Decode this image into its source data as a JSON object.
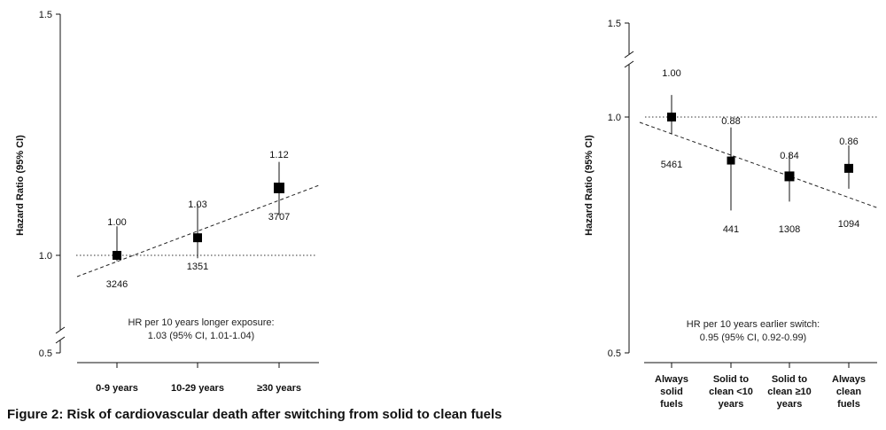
{
  "caption": "Figure 2: Risk of cardiovascular death after switching from solid to clean fuels",
  "chart_data": [
    {
      "type": "scatter",
      "title": "",
      "ylabel": "Hazard Ratio (95% CI)",
      "y_scale": "log",
      "ylim": [
        0.5,
        1.5
      ],
      "y_ticks": [
        "0.5",
        "1.0",
        "1.5"
      ],
      "axis_break": true,
      "reference_line": 1.0,
      "categories": [
        "0-9 years",
        "10-29 years",
        "≥30 years"
      ],
      "estimates": [
        1.0,
        1.03,
        1.12
      ],
      "estimate_labels": [
        "1.00",
        "1.03",
        "1.12"
      ],
      "ci_low": [
        0.96,
        0.98,
        1.07
      ],
      "ci_high": [
        1.05,
        1.09,
        1.17
      ],
      "counts": [
        "3246",
        "1351",
        "3707"
      ],
      "trend_line": true,
      "annotation": [
        "HR per 10 years longer exposure:",
        "1.03 (95% CI, 1.01-1.04)"
      ]
    },
    {
      "type": "scatter",
      "title": "",
      "ylabel": "Hazard Ratio (95% CI)",
      "y_scale": "log",
      "ylim": [
        0.5,
        1.5
      ],
      "y_ticks": [
        "0.5",
        "1.0",
        "1.5"
      ],
      "axis_break": true,
      "reference_line": 1.0,
      "categories": [
        [
          "Always",
          "solid",
          "fuels"
        ],
        [
          "Solid to",
          "clean <10",
          "years"
        ],
        [
          "Solid to",
          "clean ≥10",
          "years"
        ],
        [
          "Always",
          "clean",
          "fuels"
        ]
      ],
      "estimates": [
        1.0,
        0.88,
        0.84,
        0.86
      ],
      "estimate_labels": [
        "1.00",
        "0.88",
        "0.84",
        "0.86"
      ],
      "ci_low": [
        0.95,
        0.76,
        0.78,
        0.81
      ],
      "ci_high": [
        1.1,
        0.97,
        0.9,
        0.92
      ],
      "counts": [
        "5461",
        "441",
        "1308",
        "1094"
      ],
      "trend_line": true,
      "annotation": [
        "HR per 10 years earlier switch:",
        "0.95 (95% CI, 0.92-0.99)"
      ]
    }
  ]
}
